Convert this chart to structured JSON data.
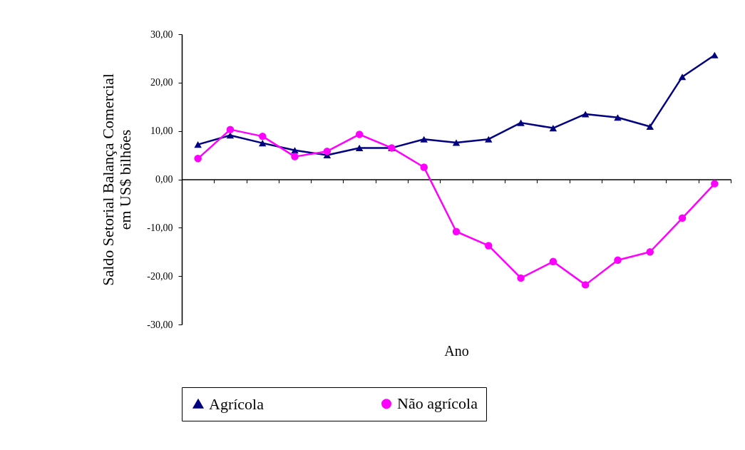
{
  "chart_data": {
    "type": "line",
    "xlabel": "Ano",
    "ylabel": "Saldo Setorial Balança Comercial\nem US$ bilhões",
    "categories": [
      null,
      null,
      null,
      null,
      null,
      null,
      null,
      null,
      null,
      null,
      null,
      null,
      null,
      null,
      null,
      null,
      null
    ],
    "series": [
      {
        "name": "Agrícola",
        "color": "#000080",
        "marker": "triangle",
        "values": [
          7.2,
          9.1,
          7.5,
          6.0,
          5.0,
          6.5,
          6.5,
          8.3,
          7.6,
          8.3,
          11.7,
          10.6,
          13.5,
          12.8,
          10.9,
          21.2,
          25.7
        ]
      },
      {
        "name": "Não agrícola",
        "color": "#ff00ff",
        "marker": "circle",
        "values": [
          4.3,
          10.3,
          8.9,
          4.7,
          5.8,
          9.3,
          6.5,
          2.5,
          -10.8,
          -13.7,
          -20.4,
          -17.0,
          -21.8,
          -16.7,
          -15.0,
          -8.0,
          -0.9
        ]
      }
    ],
    "ylim": [
      -30,
      30
    ],
    "yticks": [
      {
        "value": -30,
        "label": "-30,00"
      },
      {
        "value": -20,
        "label": "-20,00"
      },
      {
        "value": -10,
        "label": "-10,00"
      },
      {
        "value": 0,
        "label": "0,00"
      },
      {
        "value": 10,
        "label": "10,00"
      },
      {
        "value": 20,
        "label": "20,00"
      },
      {
        "value": 30,
        "label": "30,00"
      }
    ],
    "legend": "bottom",
    "tick_labels": "y"
  }
}
